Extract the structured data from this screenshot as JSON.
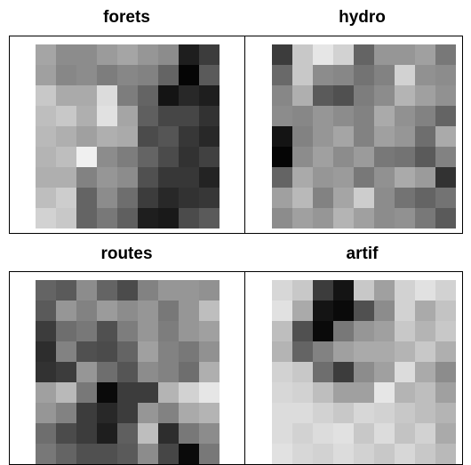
{
  "chart_data": [
    {
      "type": "heatmap",
      "title": "forets",
      "rows": 9,
      "cols": 9,
      "values": [
        [
          165,
          140,
          140,
          155,
          165,
          150,
          140,
          30,
          60
        ],
        [
          160,
          135,
          140,
          125,
          135,
          130,
          100,
          5,
          90
        ],
        [
          200,
          170,
          170,
          220,
          125,
          100,
          20,
          40,
          30
        ],
        [
          190,
          200,
          175,
          225,
          165,
          95,
          70,
          70,
          50
        ],
        [
          185,
          175,
          160,
          175,
          170,
          75,
          85,
          55,
          40
        ],
        [
          180,
          190,
          240,
          140,
          125,
          100,
          75,
          50,
          65
        ],
        [
          175,
          175,
          130,
          150,
          140,
          80,
          55,
          55,
          35
        ],
        [
          190,
          205,
          100,
          140,
          110,
          60,
          40,
          50,
          55
        ],
        [
          210,
          200,
          100,
          120,
          95,
          30,
          25,
          75,
          90
        ]
      ]
    },
    {
      "type": "heatmap",
      "title": "hydro",
      "rows": 9,
      "cols": 9,
      "values": [
        [
          60,
          200,
          230,
          210,
          100,
          150,
          150,
          160,
          120
        ],
        [
          105,
          200,
          140,
          135,
          115,
          130,
          210,
          145,
          140
        ],
        [
          135,
          175,
          90,
          80,
          125,
          140,
          180,
          160,
          145
        ],
        [
          140,
          135,
          150,
          140,
          130,
          170,
          145,
          130,
          100
        ],
        [
          20,
          130,
          150,
          165,
          130,
          160,
          150,
          110,
          170
        ],
        [
          5,
          140,
          160,
          140,
          155,
          120,
          115,
          90,
          130
        ],
        [
          100,
          170,
          150,
          155,
          120,
          145,
          170,
          155,
          50
        ],
        [
          160,
          185,
          130,
          165,
          205,
          140,
          115,
          100,
          115
        ],
        [
          140,
          160,
          150,
          180,
          160,
          140,
          145,
          120,
          90
        ]
      ]
    },
    {
      "type": "heatmap",
      "title": "routes",
      "rows": 9,
      "cols": 9,
      "values": [
        [
          100,
          90,
          140,
          100,
          75,
          130,
          150,
          150,
          145
        ],
        [
          90,
          150,
          130,
          155,
          140,
          150,
          120,
          150,
          190
        ],
        [
          60,
          110,
          120,
          80,
          125,
          150,
          125,
          150,
          160
        ],
        [
          45,
          130,
          80,
          75,
          100,
          160,
          130,
          120,
          145
        ],
        [
          50,
          60,
          150,
          110,
          85,
          140,
          130,
          110,
          175
        ],
        [
          160,
          185,
          120,
          10,
          60,
          60,
          180,
          210,
          230
        ],
        [
          150,
          130,
          60,
          40,
          60,
          150,
          130,
          170,
          180
        ],
        [
          110,
          75,
          60,
          30,
          95,
          190,
          45,
          120,
          140
        ],
        [
          120,
          100,
          80,
          80,
          90,
          140,
          70,
          10,
          120
        ]
      ]
    },
    {
      "type": "heatmap",
      "title": "artif",
      "rows": 9,
      "cols": 9,
      "values": [
        [
          215,
          200,
          60,
          20,
          200,
          160,
          210,
          225,
          210
        ],
        [
          225,
          170,
          20,
          10,
          80,
          140,
          210,
          170,
          195
        ],
        [
          190,
          80,
          10,
          120,
          150,
          160,
          200,
          180,
          200
        ],
        [
          180,
          100,
          130,
          160,
          170,
          170,
          180,
          200,
          175
        ],
        [
          210,
          200,
          110,
          60,
          140,
          160,
          220,
          170,
          140
        ],
        [
          215,
          210,
          190,
          160,
          160,
          230,
          180,
          190,
          160
        ],
        [
          220,
          220,
          210,
          200,
          215,
          210,
          200,
          190,
          180
        ],
        [
          220,
          210,
          220,
          225,
          200,
          220,
          195,
          210,
          170
        ],
        [
          225,
          215,
          210,
          220,
          210,
          200,
          215,
          200,
          185
        ]
      ]
    }
  ]
}
